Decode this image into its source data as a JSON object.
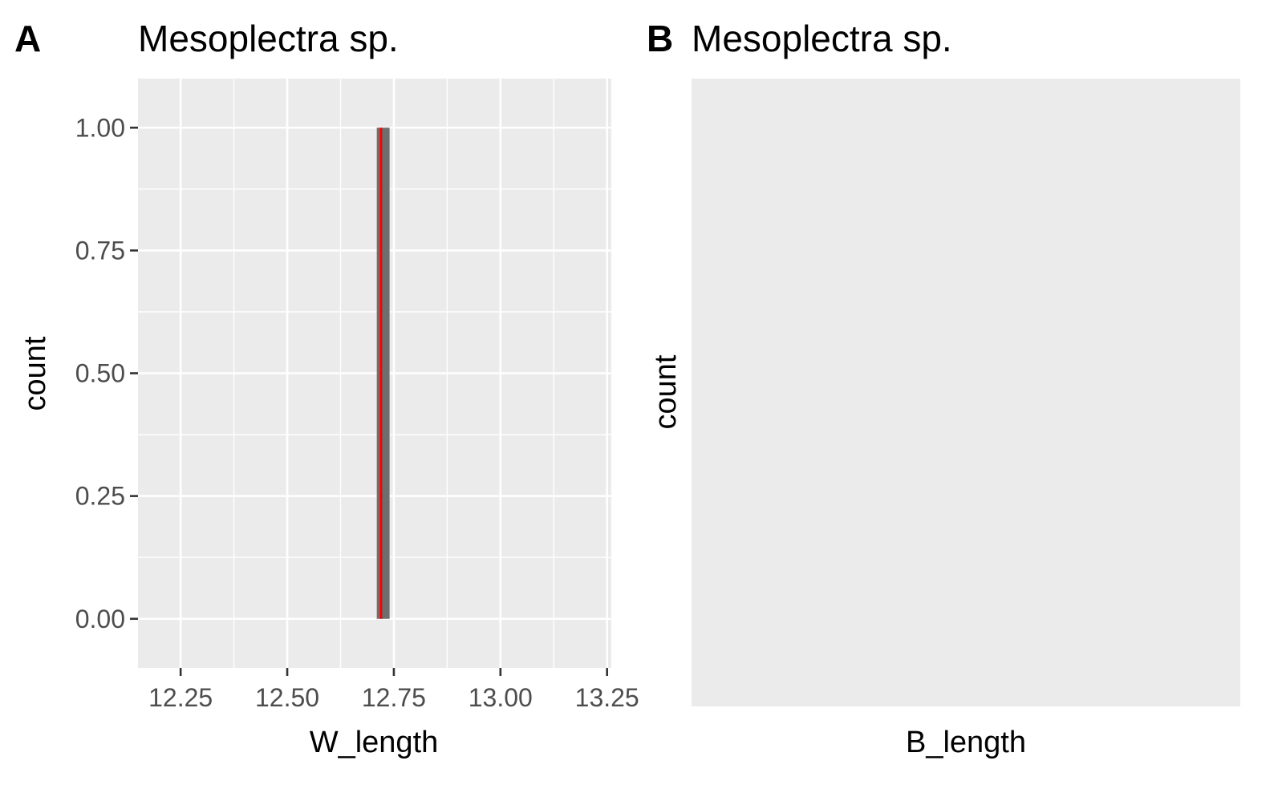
{
  "chart_data": [
    {
      "panel": "A",
      "type": "bar",
      "title": "Mesoplectra sp.",
      "xlabel": "W_length",
      "ylabel": "count",
      "xlim": [
        12.15,
        13.26
      ],
      "ylim": [
        -0.1,
        1.1
      ],
      "x_ticks": [
        12.25,
        12.5,
        12.75,
        13.0,
        13.25
      ],
      "x_tick_labels": [
        "12.25",
        "12.50",
        "12.75",
        "13.00",
        "13.25"
      ],
      "y_ticks": [
        0,
        0.25,
        0.5,
        0.75,
        1.0
      ],
      "y_tick_labels": [
        "0.00",
        "0.25",
        "0.50",
        "0.75",
        "1.00"
      ],
      "grid": true,
      "bins": [
        {
          "x_start": 12.71,
          "x_end": 12.74,
          "count": 1
        }
      ],
      "bar_color": "#6e6e6e",
      "reference_line": {
        "x": 12.72,
        "color": "#ff0000"
      }
    },
    {
      "panel": "B",
      "type": "bar",
      "title": "Mesoplectra sp.",
      "xlabel": "B_length",
      "ylabel": "count",
      "bins": [],
      "grid": false
    }
  ],
  "style": {
    "panel_background": "#ebebeb",
    "grid_color": "#ffffff",
    "tick_color": "#333333"
  }
}
